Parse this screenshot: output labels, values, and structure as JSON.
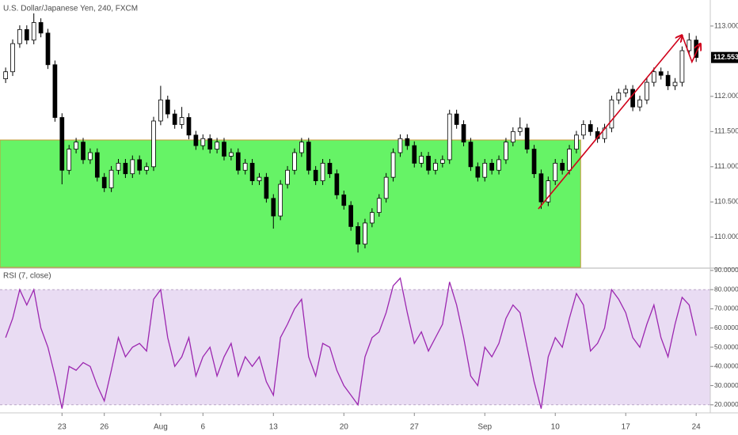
{
  "chart_data": {
    "type": "candlestick",
    "title": "U.S. Dollar/Japanese Yen, 240, FXCM",
    "x": [
      -4.0,
      -3.5,
      -3.0,
      -2.5,
      -2.0,
      -1.5,
      -1.0,
      -0.5,
      0.0,
      0.5,
      1.0,
      1.5,
      2.0,
      2.5,
      3.0,
      3.5,
      4.0,
      4.5,
      5.0,
      5.5,
      6.0,
      6.5,
      7.0,
      7.5,
      8.0,
      8.5,
      9.0,
      9.5,
      10.0,
      10.5,
      11.0,
      11.5,
      12.0,
      12.5,
      13.0,
      13.5,
      14.0,
      14.5,
      15.0,
      15.5,
      16.0,
      16.5,
      17.0,
      17.5,
      18.0,
      18.5,
      19.0,
      19.5,
      20.0,
      20.5,
      21.0,
      21.5,
      22.0,
      22.5,
      23.0,
      23.5,
      24.0,
      24.5,
      25.0,
      25.5,
      26.0,
      26.5,
      27.0,
      27.5,
      28.0,
      28.5,
      29.0,
      29.5,
      30.0,
      30.5,
      31.0,
      31.5,
      32.0,
      32.5,
      33.0,
      33.5,
      34.0,
      34.5,
      35.0,
      35.5,
      36.0,
      36.5,
      37.0,
      37.5,
      38.0,
      38.5,
      39.0,
      39.5,
      40.0,
      40.5,
      41.0,
      41.5,
      42.0,
      42.5,
      43.0,
      43.5,
      44.0,
      44.5,
      45.0
    ],
    "open": [
      112.25,
      112.35,
      112.75,
      112.95,
      112.8,
      113.05,
      112.9,
      112.45,
      111.7,
      110.95,
      111.25,
      111.35,
      111.1,
      111.2,
      110.85,
      110.7,
      110.95,
      111.05,
      110.9,
      111.1,
      110.95,
      111.0,
      111.65,
      111.95,
      111.75,
      111.6,
      111.7,
      111.45,
      111.3,
      111.4,
      111.25,
      111.35,
      111.15,
      111.2,
      110.95,
      111.05,
      110.8,
      110.85,
      110.55,
      110.3,
      110.75,
      110.95,
      111.2,
      111.35,
      110.95,
      110.8,
      111.05,
      110.9,
      110.6,
      110.45,
      110.15,
      109.9,
      110.2,
      110.35,
      110.55,
      110.85,
      111.2,
      111.4,
      111.3,
      111.05,
      111.15,
      110.95,
      111.05,
      111.1,
      111.75,
      111.6,
      111.35,
      111.0,
      110.85,
      111.05,
      110.95,
      111.1,
      111.35,
      111.5,
      111.55,
      111.25,
      110.9,
      110.5,
      110.8,
      111.05,
      110.95,
      111.25,
      111.45,
      111.6,
      111.5,
      111.4,
      111.55,
      111.95,
      112.05,
      112.1,
      111.85,
      111.95,
      112.2,
      112.35,
      112.3,
      112.15,
      112.2,
      112.65,
      112.8
    ],
    "high": [
      112.41,
      112.81,
      113.01,
      113.01,
      113.18,
      113.11,
      112.96,
      112.51,
      111.76,
      111.31,
      111.41,
      111.41,
      111.26,
      111.26,
      110.91,
      111.01,
      111.11,
      111.11,
      111.16,
      111.16,
      111.06,
      111.71,
      112.15,
      112.01,
      111.81,
      111.85,
      111.76,
      111.51,
      111.46,
      111.46,
      111.41,
      111.41,
      111.26,
      111.26,
      111.11,
      111.11,
      110.91,
      110.91,
      110.61,
      110.81,
      111.01,
      111.26,
      111.41,
      111.41,
      111.01,
      111.11,
      111.11,
      110.96,
      110.66,
      110.51,
      110.21,
      110.26,
      110.41,
      110.61,
      110.91,
      111.26,
      111.46,
      111.46,
      111.36,
      111.21,
      111.21,
      111.11,
      111.16,
      111.81,
      111.81,
      111.66,
      111.41,
      111.06,
      111.11,
      111.11,
      111.16,
      111.41,
      111.56,
      111.7,
      111.61,
      111.31,
      110.96,
      110.86,
      111.11,
      111.11,
      111.31,
      111.51,
      111.66,
      111.66,
      111.56,
      111.61,
      112.01,
      112.11,
      112.16,
      112.16,
      112.01,
      112.26,
      112.41,
      112.41,
      112.36,
      112.26,
      112.71,
      112.9,
      112.86
    ],
    "low": [
      112.19,
      112.29,
      112.69,
      112.74,
      112.74,
      112.84,
      112.39,
      111.64,
      110.75,
      110.89,
      111.19,
      111.04,
      111.04,
      110.79,
      110.64,
      110.64,
      110.89,
      110.84,
      110.84,
      110.89,
      110.89,
      110.94,
      111.59,
      111.69,
      111.54,
      111.54,
      111.39,
      111.24,
      111.24,
      111.19,
      111.19,
      111.09,
      111.09,
      110.89,
      110.89,
      110.74,
      110.74,
      110.49,
      110.12,
      110.24,
      110.69,
      110.89,
      111.14,
      110.89,
      110.74,
      110.74,
      110.84,
      110.54,
      110.39,
      110.09,
      109.78,
      109.84,
      110.14,
      110.29,
      110.49,
      110.79,
      111.14,
      111.24,
      110.99,
      110.99,
      110.89,
      110.89,
      110.99,
      111.04,
      111.54,
      111.29,
      110.94,
      110.79,
      110.79,
      110.89,
      110.89,
      111.04,
      111.29,
      111.44,
      111.19,
      110.84,
      110.4,
      110.44,
      110.74,
      110.89,
      110.89,
      111.19,
      111.39,
      111.44,
      111.34,
      111.34,
      111.49,
      111.89,
      111.99,
      111.79,
      111.79,
      111.89,
      112.14,
      112.24,
      112.09,
      112.09,
      112.14,
      112.59,
      112.49
    ],
    "close": [
      112.35,
      112.75,
      112.95,
      112.8,
      113.05,
      112.9,
      112.45,
      111.7,
      110.95,
      111.25,
      111.35,
      111.1,
      111.2,
      110.85,
      110.7,
      110.95,
      111.05,
      110.9,
      111.1,
      110.95,
      111.0,
      111.65,
      111.95,
      111.75,
      111.6,
      111.7,
      111.45,
      111.3,
      111.4,
      111.25,
      111.35,
      111.15,
      111.2,
      110.95,
      111.05,
      110.8,
      110.85,
      110.55,
      110.3,
      110.75,
      110.95,
      111.2,
      111.35,
      110.95,
      110.8,
      111.05,
      110.9,
      110.6,
      110.45,
      110.15,
      109.9,
      110.2,
      110.35,
      110.55,
      110.85,
      111.2,
      111.4,
      111.3,
      111.05,
      111.15,
      110.95,
      111.05,
      111.1,
      111.75,
      111.6,
      111.35,
      111.0,
      110.85,
      111.05,
      110.95,
      111.1,
      111.35,
      111.5,
      111.55,
      111.25,
      110.9,
      110.5,
      110.8,
      111.05,
      110.95,
      111.25,
      111.45,
      111.6,
      111.5,
      111.4,
      111.55,
      111.95,
      112.05,
      112.1,
      111.85,
      111.95,
      112.2,
      112.35,
      112.3,
      112.15,
      112.2,
      112.65,
      112.8,
      112.553
    ],
    "up_color": "#ffffff",
    "down_color": "#000000",
    "xlim": [
      -4.4,
      46.0
    ],
    "xticks": [
      {
        "value": 0,
        "label": "23"
      },
      {
        "value": 3,
        "label": "26"
      },
      {
        "value": 7,
        "label": "Aug"
      },
      {
        "value": 10,
        "label": "6"
      },
      {
        "value": 15,
        "label": "13"
      },
      {
        "value": 20,
        "label": "20"
      },
      {
        "value": 25,
        "label": "27"
      },
      {
        "value": 30,
        "label": "Sep"
      },
      {
        "value": 35,
        "label": "10"
      },
      {
        "value": 40,
        "label": "17"
      },
      {
        "value": 45,
        "label": "24"
      }
    ],
    "ylim": [
      109.57,
      113.37
    ],
    "yticks": [
      {
        "value": 110,
        "label": "110.000"
      },
      {
        "value": 110.5,
        "label": "110.500"
      },
      {
        "value": 111,
        "label": "111.000"
      },
      {
        "value": 111.5,
        "label": "111.500"
      },
      {
        "value": 112,
        "label": "112.000"
      },
      {
        "value": 113,
        "label": "113.000"
      }
    ],
    "drawings": {
      "zone": {
        "x": [
          -4.4,
          36.8
        ],
        "y": [
          109.57,
          111.38
        ],
        "color": "#66f366"
      },
      "trend_arrow": {
        "x": [
          33.8,
          44.0
        ],
        "y": [
          110.4,
          112.87
        ],
        "color": "#d0021b"
      },
      "hook_arrow": {
        "x": [
          44.0,
          44.7,
          45.3
        ],
        "y": [
          112.87,
          112.49,
          112.75
        ],
        "color": "#d0021b"
      }
    },
    "indicator": {
      "type": "line",
      "title": "RSI (7, close)",
      "color": "#9c27b0",
      "band": [
        20,
        80
      ],
      "band_color": "#e9dcf3",
      "values": [
        55,
        65,
        80,
        72,
        80,
        60,
        50,
        35,
        18,
        40,
        38,
        42,
        40,
        30,
        22,
        38,
        55,
        45,
        50,
        52,
        48,
        75,
        80,
        55,
        40,
        45,
        55,
        35,
        45,
        50,
        35,
        45,
        52,
        35,
        45,
        40,
        45,
        32,
        25,
        55,
        62,
        70,
        75,
        45,
        35,
        52,
        50,
        38,
        30,
        25,
        20,
        45,
        55,
        58,
        68,
        82,
        86,
        68,
        52,
        58,
        48,
        55,
        62,
        84,
        72,
        55,
        35,
        30,
        50,
        45,
        52,
        65,
        72,
        68,
        50,
        32,
        18,
        45,
        55,
        50,
        65,
        78,
        72,
        48,
        52,
        60,
        80,
        75,
        68,
        55,
        50,
        62,
        72,
        55,
        45,
        62,
        76,
        72,
        56
      ],
      "ylim": [
        15.8,
        90.8
      ],
      "yticks": [
        {
          "value": 20,
          "label": "20.0000"
        },
        {
          "value": 30,
          "label": "30.0000"
        },
        {
          "value": 40,
          "label": "40.0000"
        },
        {
          "value": 50,
          "label": "50.0000"
        },
        {
          "value": 60,
          "label": "60.0000"
        },
        {
          "value": 70,
          "label": "70.0000"
        },
        {
          "value": 80,
          "label": "80.0000"
        },
        {
          "value": 90,
          "label": "90.0000"
        }
      ]
    }
  }
}
